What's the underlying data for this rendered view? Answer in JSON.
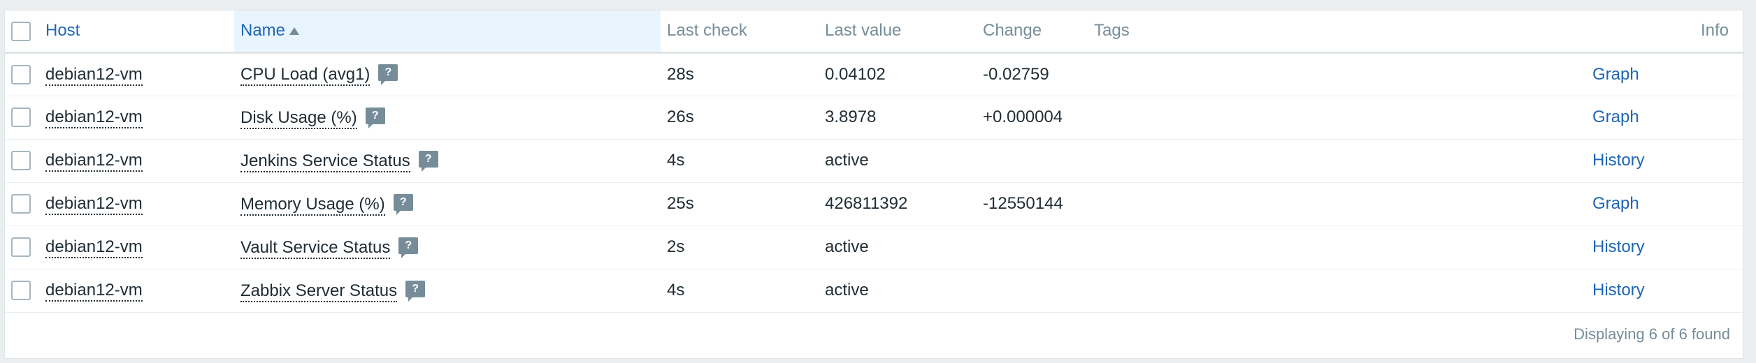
{
  "table": {
    "headers": {
      "host": "Host",
      "name": "Name",
      "last_check": "Last check",
      "last_value": "Last value",
      "change": "Change",
      "tags": "Tags",
      "info": "Info"
    },
    "rows": [
      {
        "host": "debian12-vm",
        "name": "CPU Load (avg1)",
        "hint": "?",
        "last_check": "28s",
        "last_value": "0.04102",
        "change": "-0.02759",
        "action": "Graph"
      },
      {
        "host": "debian12-vm",
        "name": "Disk Usage (%)",
        "hint": "?",
        "last_check": "26s",
        "last_value": "3.8978",
        "change": "+0.000004",
        "action": "Graph"
      },
      {
        "host": "debian12-vm",
        "name": "Jenkins Service Status",
        "hint": "?",
        "last_check": "4s",
        "last_value": "active",
        "change": "",
        "action": "History"
      },
      {
        "host": "debian12-vm",
        "name": "Memory Usage (%)",
        "hint": "?",
        "last_check": "25s",
        "last_value": "426811392",
        "change": "-12550144",
        "action": "Graph"
      },
      {
        "host": "debian12-vm",
        "name": "Vault Service Status",
        "hint": "?",
        "last_check": "2s",
        "last_value": "active",
        "change": "",
        "action": "History"
      },
      {
        "host": "debian12-vm",
        "name": "Zabbix Server Status",
        "hint": "?",
        "last_check": "4s",
        "last_value": "active",
        "change": "",
        "action": "History"
      }
    ]
  },
  "footer": {
    "summary": "Displaying 6 of 6 found"
  },
  "colors": {
    "link": "#1f65b5",
    "muted": "#768d99",
    "sorted_header_bg": "#e8f5ff",
    "page_bg": "#ebeef0"
  },
  "icons": {
    "sort": "sort-ascending-icon",
    "hint": "question-hint-icon"
  }
}
